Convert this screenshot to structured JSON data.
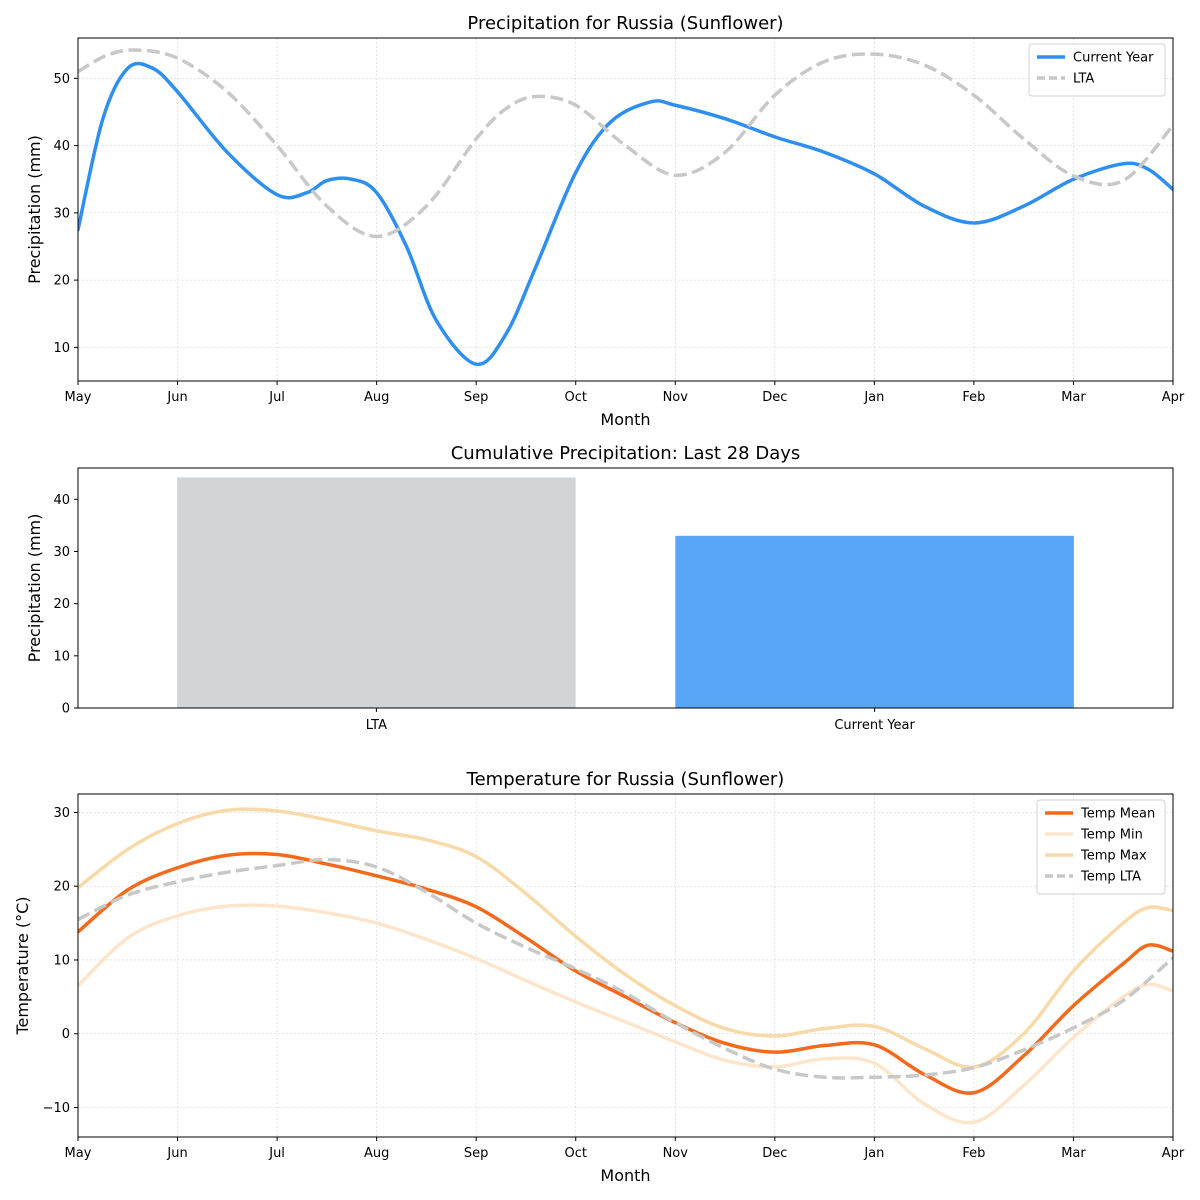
{
  "chart_data": [
    {
      "type": "line",
      "title": "Precipitation for Russia (Sunflower)",
      "xlabel": "Month",
      "ylabel": "Precipitation (mm)",
      "x_ticks": [
        "May",
        "Jun",
        "Jul",
        "Aug",
        "Sep",
        "Oct",
        "Nov",
        "Dec",
        "Jan",
        "Feb",
        "Mar",
        "Apr"
      ],
      "ylim": [
        5,
        56
      ],
      "y_ticks": [
        10,
        20,
        30,
        40,
        50
      ],
      "grid": true,
      "legend": "top-right",
      "series": [
        {
          "name": "Current Year",
          "color": "#2f8ff0",
          "style": "solid",
          "points": [
            [
              0,
              27.5
            ],
            [
              0.25,
              44
            ],
            [
              0.5,
              51.5
            ],
            [
              0.75,
              51.5
            ],
            [
              1,
              48
            ],
            [
              1.5,
              39
            ],
            [
              2,
              32.7
            ],
            [
              2.3,
              33
            ],
            [
              2.5,
              34.8
            ],
            [
              2.75,
              35
            ],
            [
              3,
              33
            ],
            [
              3.3,
              25
            ],
            [
              3.6,
              14
            ],
            [
              4,
              7.5
            ],
            [
              4.3,
              12
            ],
            [
              4.6,
              22
            ],
            [
              5,
              36
            ],
            [
              5.35,
              43.5
            ],
            [
              5.75,
              46.5
            ],
            [
              6,
              46
            ],
            [
              6.5,
              44
            ],
            [
              7,
              41.3
            ],
            [
              7.5,
              39
            ],
            [
              8,
              35.8
            ],
            [
              8.5,
              31
            ],
            [
              9,
              28.5
            ],
            [
              9.5,
              31
            ],
            [
              10,
              35
            ],
            [
              10.5,
              37.3
            ],
            [
              10.75,
              36.5
            ],
            [
              11,
              33.5
            ]
          ]
        },
        {
          "name": "LTA",
          "color": "#c8c8c8",
          "style": "dashed",
          "points": [
            [
              0,
              51
            ],
            [
              0.3,
              53.5
            ],
            [
              0.6,
              54.2
            ],
            [
              1,
              53
            ],
            [
              1.5,
              48
            ],
            [
              2,
              40
            ],
            [
              2.5,
              31
            ],
            [
              3,
              26.5
            ],
            [
              3.5,
              31
            ],
            [
              4,
              41
            ],
            [
              4.3,
              45.5
            ],
            [
              4.6,
              47.3
            ],
            [
              5,
              46
            ],
            [
              5.5,
              40
            ],
            [
              6,
              35.6
            ],
            [
              6.5,
              39
            ],
            [
              7,
              47.5
            ],
            [
              7.5,
              52.5
            ],
            [
              8,
              53.6
            ],
            [
              8.5,
              52
            ],
            [
              9,
              47.5
            ],
            [
              9.5,
              41
            ],
            [
              10,
              35.5
            ],
            [
              10.5,
              34.8
            ],
            [
              11,
              43
            ]
          ]
        }
      ]
    },
    {
      "type": "bar",
      "title": "Cumulative Precipitation: Last 28 Days",
      "ylabel": "Precipitation (mm)",
      "categories": [
        "LTA",
        "Current Year"
      ],
      "values": [
        44.2,
        33.0
      ],
      "colors": [
        "#d1d5d8",
        "#58a6f8"
      ],
      "ylim": [
        0,
        46
      ],
      "y_ticks": [
        0,
        10,
        20,
        30,
        40
      ]
    },
    {
      "type": "line",
      "title": "Temperature for Russia (Sunflower)",
      "xlabel": "Month",
      "ylabel": "Temperature (°C)",
      "x_ticks": [
        "May",
        "Jun",
        "Jul",
        "Aug",
        "Sep",
        "Oct",
        "Nov",
        "Dec",
        "Jan",
        "Feb",
        "Mar",
        "Apr"
      ],
      "ylim": [
        -14,
        32.5
      ],
      "y_ticks": [
        -10,
        0,
        10,
        20,
        30
      ],
      "y_tick_labels": [
        "−10",
        "0",
        "10",
        "20",
        "30"
      ],
      "grid": true,
      "legend": "top-right",
      "series": [
        {
          "name": "Temp Mean",
          "color": "#f36a1c",
          "style": "solid",
          "points": [
            [
              0,
              13.8
            ],
            [
              0.5,
              19.5
            ],
            [
              1,
              22.5
            ],
            [
              1.5,
              24.2
            ],
            [
              2,
              24.3
            ],
            [
              2.5,
              23
            ],
            [
              3,
              21.4
            ],
            [
              3.5,
              19.6
            ],
            [
              4,
              17.2
            ],
            [
              4.5,
              13
            ],
            [
              5,
              8.5
            ],
            [
              5.5,
              5
            ],
            [
              6,
              1.5
            ],
            [
              6.5,
              -1.3
            ],
            [
              7,
              -2.5
            ],
            [
              7.5,
              -1.6
            ],
            [
              8,
              -1.5
            ],
            [
              8.5,
              -5.5
            ],
            [
              9,
              -8
            ],
            [
              9.5,
              -3
            ],
            [
              10,
              3.8
            ],
            [
              10.5,
              9.5
            ],
            [
              10.75,
              12
            ],
            [
              11,
              11.2
            ]
          ]
        },
        {
          "name": "Temp Min",
          "color": "#fde5cc",
          "style": "solid",
          "points": [
            [
              0,
              6.5
            ],
            [
              0.5,
              13
            ],
            [
              1,
              16
            ],
            [
              1.5,
              17.3
            ],
            [
              2,
              17.3
            ],
            [
              2.5,
              16.4
            ],
            [
              3,
              15
            ],
            [
              3.5,
              12.8
            ],
            [
              4,
              10.2
            ],
            [
              4.5,
              7.2
            ],
            [
              5,
              4.3
            ],
            [
              5.5,
              1.6
            ],
            [
              6,
              -1.1
            ],
            [
              6.5,
              -3.6
            ],
            [
              7,
              -4.5
            ],
            [
              7.5,
              -3.4
            ],
            [
              8,
              -4
            ],
            [
              8.5,
              -9.5
            ],
            [
              9,
              -12
            ],
            [
              9.5,
              -7
            ],
            [
              10,
              -0.5
            ],
            [
              10.5,
              5
            ],
            [
              10.75,
              6.7
            ],
            [
              11,
              5.8
            ]
          ]
        },
        {
          "name": "Temp Max",
          "color": "#f8d9a8",
          "style": "solid",
          "points": [
            [
              0,
              19.8
            ],
            [
              0.5,
              25
            ],
            [
              1,
              28.5
            ],
            [
              1.5,
              30.3
            ],
            [
              2,
              30.2
            ],
            [
              2.5,
              29
            ],
            [
              3,
              27.5
            ],
            [
              3.5,
              26.3
            ],
            [
              4,
              24
            ],
            [
              4.5,
              19
            ],
            [
              5,
              13.2
            ],
            [
              5.5,
              8
            ],
            [
              6,
              3.8
            ],
            [
              6.5,
              0.7
            ],
            [
              7,
              -0.3
            ],
            [
              7.5,
              0.7
            ],
            [
              8,
              1
            ],
            [
              8.5,
              -2
            ],
            [
              9,
              -4.5
            ],
            [
              9.5,
              0
            ],
            [
              10,
              8.5
            ],
            [
              10.5,
              15
            ],
            [
              10.75,
              17.1
            ],
            [
              11,
              16.7
            ]
          ]
        },
        {
          "name": "Temp LTA",
          "color": "#c8c8c8",
          "style": "dashed",
          "points": [
            [
              0,
              15.5
            ],
            [
              0.5,
              18.8
            ],
            [
              1,
              20.6
            ],
            [
              1.5,
              21.9
            ],
            [
              2,
              22.8
            ],
            [
              2.5,
              23.6
            ],
            [
              3,
              22.6
            ],
            [
              3.5,
              19.2
            ],
            [
              4,
              15
            ],
            [
              4.5,
              11.7
            ],
            [
              5,
              8.8
            ],
            [
              5.5,
              5.5
            ],
            [
              6,
              1.5
            ],
            [
              6.5,
              -2
            ],
            [
              7,
              -4.8
            ],
            [
              7.5,
              -5.9
            ],
            [
              8,
              -5.9
            ],
            [
              8.5,
              -5.6
            ],
            [
              9,
              -4.6
            ],
            [
              9.5,
              -2.2
            ],
            [
              10,
              0.8
            ],
            [
              10.5,
              4.5
            ],
            [
              11,
              10.3
            ]
          ]
        }
      ]
    }
  ]
}
